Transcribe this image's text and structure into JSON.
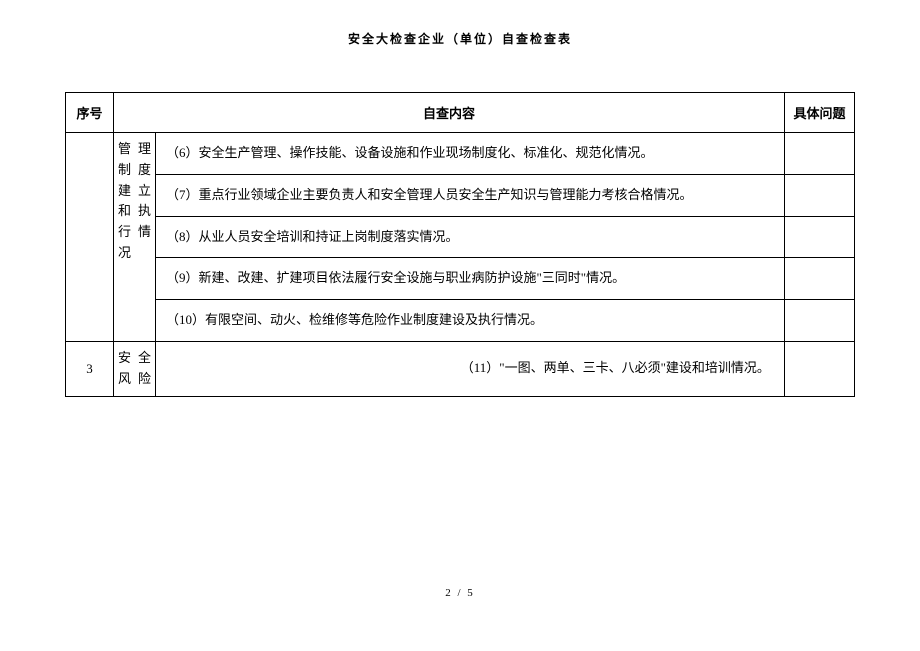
{
  "document": {
    "title": "安全大检查企业（单位）自查检查表",
    "page_footer": "2 / 5"
  },
  "table": {
    "headers": {
      "seq": "序号",
      "content": "自查内容",
      "issue": "具体问题"
    },
    "rows": [
      {
        "seq": "",
        "category": "管理制度建立和执行情况",
        "items": [
          "（6）安全生产管理、操作技能、设备设施和作业现场制度化、标准化、规范化情况。",
          "（7）重点行业领域企业主要负责人和安全管理人员安全生产知识与管理能力考核合格情况。",
          "（8）从业人员安全培训和持证上岗制度落实情况。",
          "（9）新建、改建、扩建项目依法履行安全设施与职业病防护设施\"三同时\"情况。",
          "（10）有限空间、动火、检维修等危险作业制度建设及执行情况。"
        ]
      },
      {
        "seq": "3",
        "category": "安全风险",
        "items": [
          "（11）\"一图、两单、三卡、八必须\"建设和培训情况。"
        ]
      }
    ]
  },
  "styles": {
    "background_color": "#ffffff",
    "text_color": "#000000",
    "border_color": "#000000",
    "title_fontsize": 12,
    "body_fontsize": 13,
    "footer_fontsize": 11
  }
}
